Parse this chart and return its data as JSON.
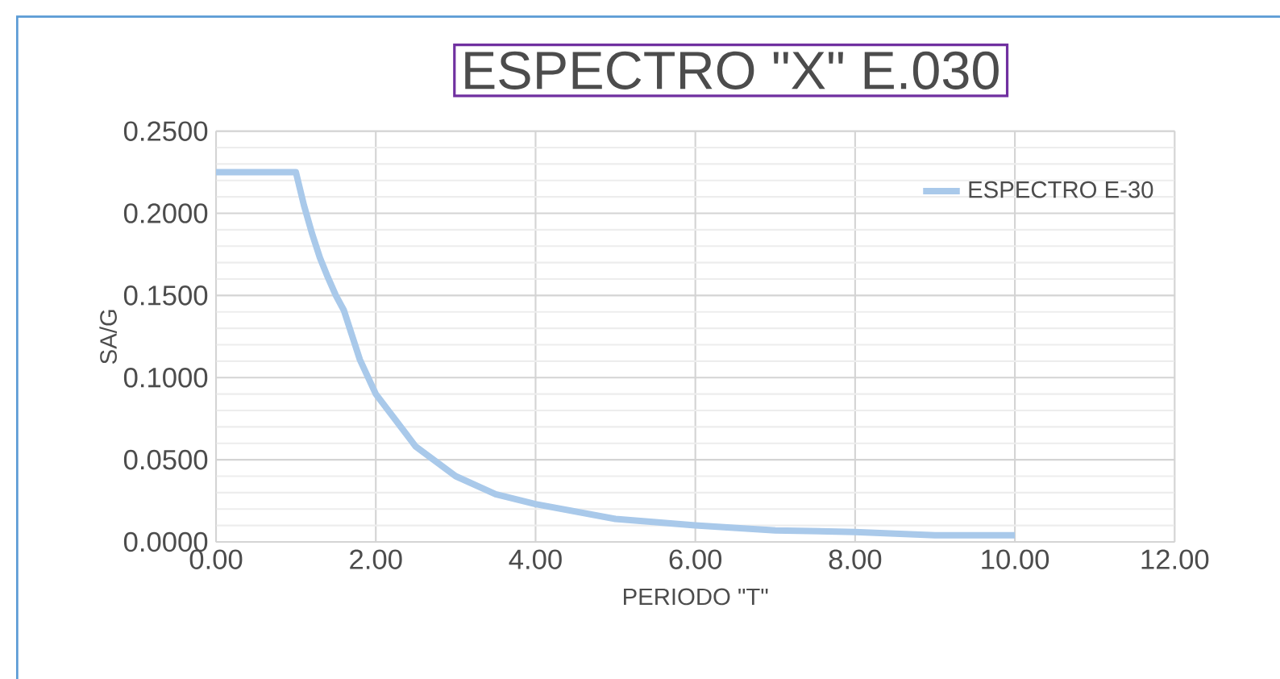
{
  "chart_data": {
    "type": "line",
    "title": "ESPECTRO \"X\"  E.030",
    "xlabel": "PERIODO \"T\"",
    "ylabel": "SA/G",
    "x": [
      0,
      0.5,
      1.0,
      1.1,
      1.2,
      1.3,
      1.4,
      1.5,
      1.6,
      1.8,
      2.0,
      2.5,
      3.0,
      3.5,
      4.0,
      5.0,
      6.0,
      7.0,
      8.0,
      9.0,
      10.0
    ],
    "series": [
      {
        "name": "ESPECTRO E-30",
        "color": "#a9c9ea",
        "values": [
          0.225,
          0.225,
          0.225,
          0.205,
          0.188,
          0.173,
          0.161,
          0.15,
          0.141,
          0.111,
          0.09,
          0.058,
          0.04,
          0.029,
          0.023,
          0.014,
          0.01,
          0.007,
          0.006,
          0.004,
          0.004
        ]
      }
    ],
    "xlim": [
      0,
      12
    ],
    "ylim": [
      0,
      0.25
    ],
    "xticks": [
      {
        "value": 0,
        "label": "0.00"
      },
      {
        "value": 2,
        "label": "2.00"
      },
      {
        "value": 4,
        "label": "4.00"
      },
      {
        "value": 6,
        "label": "6.00"
      },
      {
        "value": 8,
        "label": "8.00"
      },
      {
        "value": 10,
        "label": "10.00"
      },
      {
        "value": 12,
        "label": "12.00"
      }
    ],
    "yticks": [
      {
        "value": 0,
        "label": "0.0000"
      },
      {
        "value": 0.05,
        "label": "0.0500"
      },
      {
        "value": 0.1,
        "label": "0.1000"
      },
      {
        "value": 0.15,
        "label": "0.1500"
      },
      {
        "value": 0.2,
        "label": "0.2000"
      },
      {
        "value": 0.25,
        "label": "0.2500"
      }
    ],
    "grid": true,
    "legend": "top right",
    "marker": "none",
    "line_style": "solid"
  }
}
